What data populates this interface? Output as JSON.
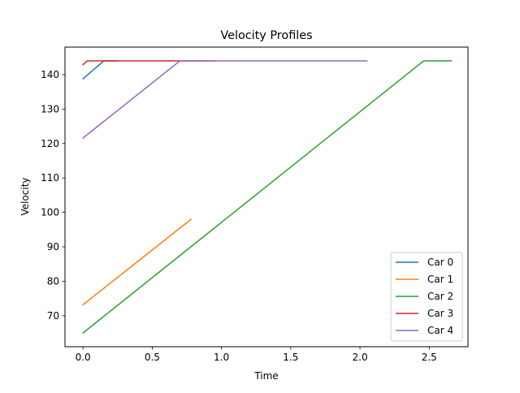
{
  "chart_data": {
    "type": "line",
    "title": "Velocity Profiles",
    "xlabel": "Time",
    "ylabel": "Velocity",
    "xlim": [
      -0.13,
      2.78
    ],
    "ylim": [
      61.0,
      148.0
    ],
    "xticks": [
      0.0,
      0.5,
      1.0,
      1.5,
      2.0,
      2.5
    ],
    "xtick_labels": [
      "0.0",
      "0.5",
      "1.0",
      "1.5",
      "2.0",
      "2.5"
    ],
    "yticks": [
      70,
      80,
      90,
      100,
      110,
      120,
      130,
      140
    ],
    "ytick_labels": [
      "70",
      "80",
      "90",
      "100",
      "110",
      "120",
      "130",
      "140"
    ],
    "grid": false,
    "legend_position": "lower right",
    "series": [
      {
        "name": "Car 0",
        "color": "#1f77b4",
        "points": [
          [
            0.0,
            138.8
          ],
          [
            0.15,
            144.0
          ],
          [
            0.25,
            144.0
          ]
        ]
      },
      {
        "name": "Car 1",
        "color": "#ff7f0e",
        "points": [
          [
            0.0,
            73.2
          ],
          [
            0.78,
            98.0
          ]
        ]
      },
      {
        "name": "Car 2",
        "color": "#2ca02c",
        "points": [
          [
            0.0,
            65.0
          ],
          [
            2.46,
            144.0
          ],
          [
            2.66,
            144.0
          ]
        ]
      },
      {
        "name": "Car 3",
        "color": "#d62728",
        "points": [
          [
            0.0,
            142.9
          ],
          [
            0.03,
            144.0
          ],
          [
            0.95,
            144.0
          ]
        ]
      },
      {
        "name": "Car 4",
        "color": "#9467bd",
        "points": [
          [
            0.0,
            121.6
          ],
          [
            0.7,
            144.0
          ],
          [
            2.05,
            144.0
          ]
        ]
      }
    ]
  }
}
